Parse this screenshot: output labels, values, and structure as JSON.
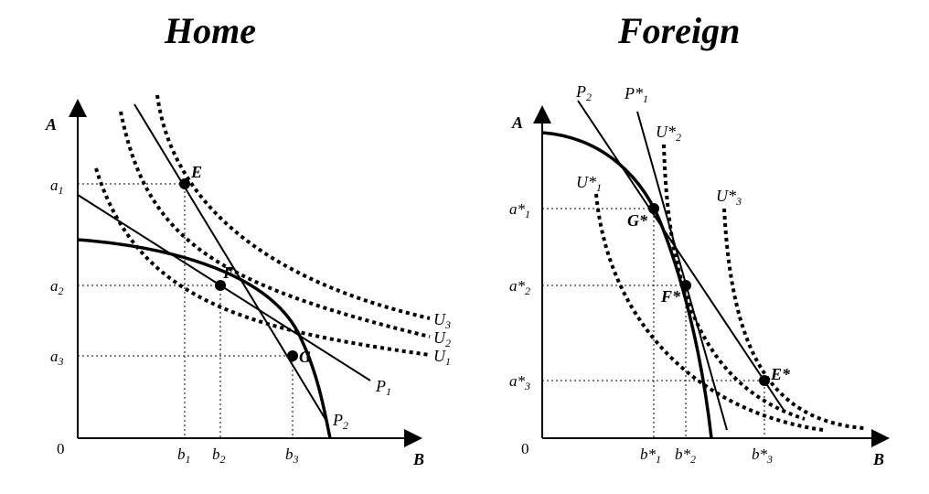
{
  "home": {
    "title": "Home",
    "y_axis_label": "A",
    "x_axis_label": "B",
    "origin": "0",
    "y_ticks": {
      "a1": "a",
      "a1_sub": "1",
      "a2": "a",
      "a2_sub": "2",
      "a3": "a",
      "a3_sub": "3"
    },
    "x_ticks": {
      "b1": "b",
      "b1_sub": "1",
      "b2": "b",
      "b2_sub": "2",
      "b3": "b",
      "b3_sub": "3"
    },
    "points": {
      "E": "E",
      "F": "F",
      "G": "G"
    },
    "price_lines": {
      "P1": "P",
      "P1_sub": "1",
      "P2": "P",
      "P2_sub": "2"
    },
    "indifference_curves": {
      "U1": "U",
      "U1_sub": "1",
      "U2": "U",
      "U2_sub": "2",
      "U3": "U",
      "U3_sub": "3"
    }
  },
  "foreign": {
    "title": "Foreign",
    "y_axis_label": "A",
    "x_axis_label": "B",
    "origin": "0",
    "y_ticks": {
      "a1": "a*",
      "a1_sub": "1",
      "a2": "a*",
      "a2_sub": "2",
      "a3": "a*",
      "a3_sub": "3"
    },
    "x_ticks": {
      "b1": "b*",
      "b1_sub": "1",
      "b2": "b*",
      "b2_sub": "2",
      "b3": "b*",
      "b3_sub": "3"
    },
    "points": {
      "G": "G*",
      "F": "F*",
      "E": "E*"
    },
    "price_lines": {
      "P2": "P",
      "P2_sub": "2",
      "P1": "P*",
      "P1_sub": "1"
    },
    "indifference_curves": {
      "U1": "U*",
      "U1_sub": "1",
      "U2": "U*",
      "U2_sub": "2",
      "U3": "U*",
      "U3_sub": "3"
    }
  }
}
